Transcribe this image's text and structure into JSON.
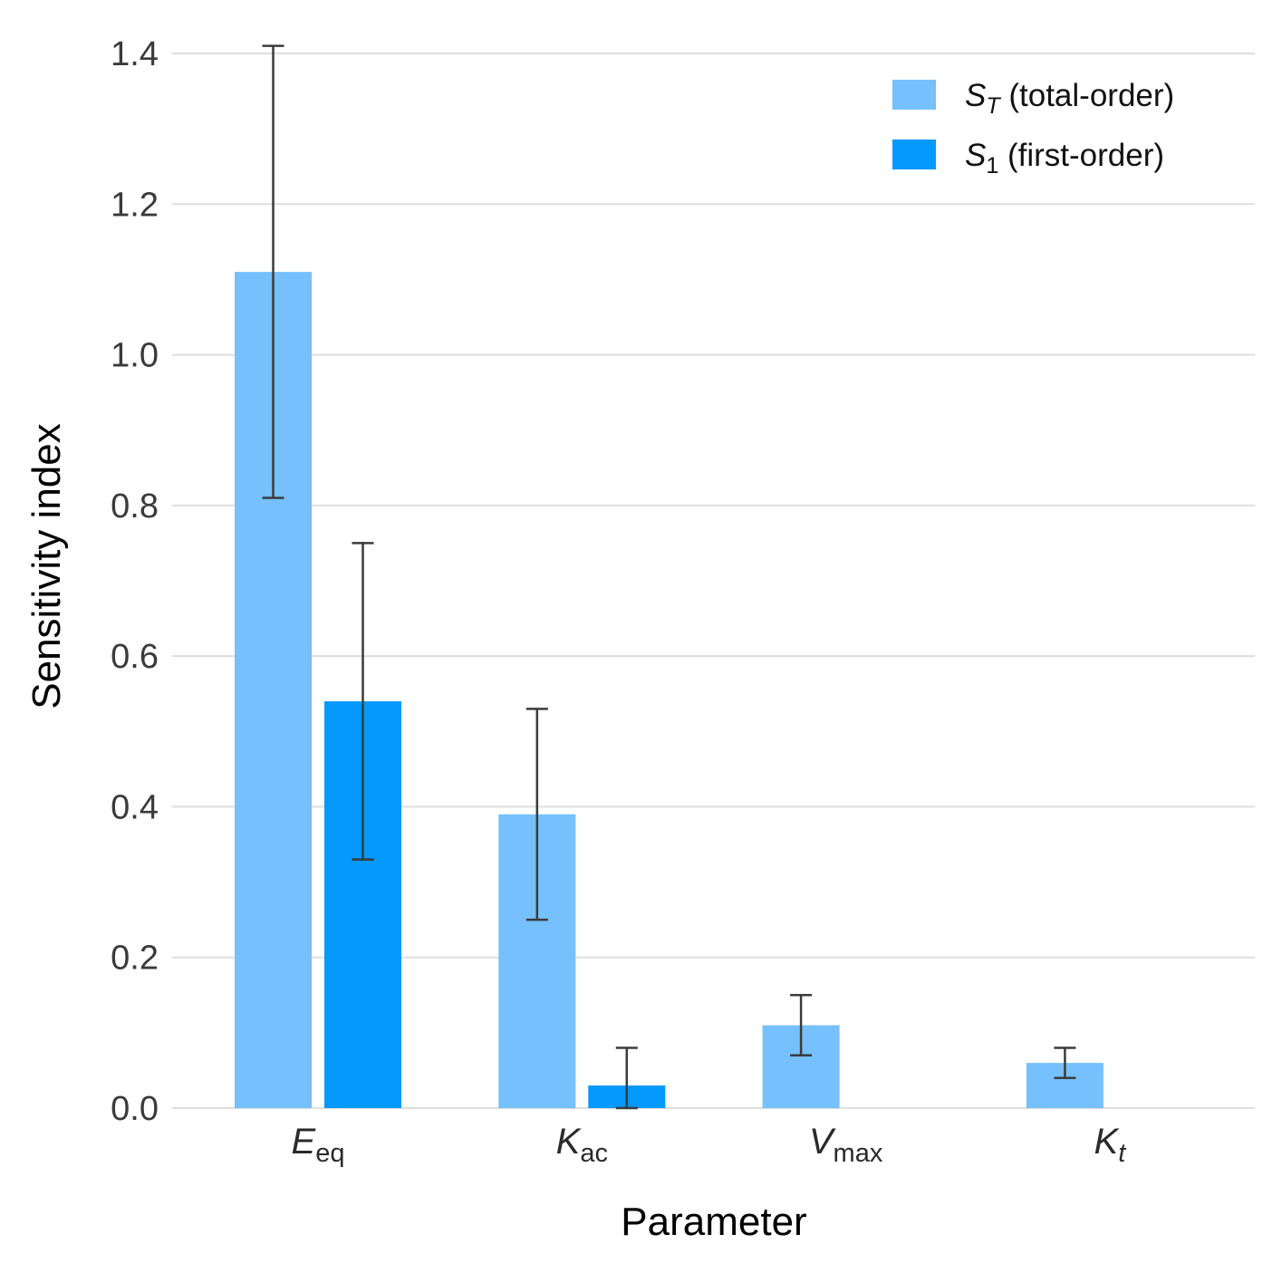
{
  "chart_data": {
    "type": "bar",
    "xlabel": "Parameter",
    "ylabel": "Sensitivity index",
    "ylim": [
      0,
      1.4
    ],
    "yticks": [
      0.0,
      0.2,
      0.4,
      0.6,
      0.8,
      1.0,
      1.2,
      1.4
    ],
    "grid": true,
    "legend_position": "top-right",
    "categories": [
      {
        "base": "E",
        "sub": "eq",
        "sub_italic": false
      },
      {
        "base": "K",
        "sub": "ac",
        "sub_italic": false
      },
      {
        "base": "V",
        "sub": "max",
        "sub_italic": false
      },
      {
        "base": "K",
        "sub": "t",
        "sub_italic": true
      }
    ],
    "series": [
      {
        "symbol": "S",
        "sub": "T",
        "sub_italic": true,
        "desc": "(total-order)",
        "color": "#75c0fd",
        "values": [
          1.11,
          0.39,
          0.11,
          0.06
        ],
        "err_low": [
          0.81,
          0.25,
          0.07,
          0.04
        ],
        "err_high": [
          1.41,
          0.53,
          0.15,
          0.08
        ]
      },
      {
        "symbol": "S",
        "sub": "1",
        "sub_italic": false,
        "desc": "(first-order)",
        "color": "#0499fc",
        "values": [
          0.54,
          0.03,
          null,
          null
        ],
        "err_low": [
          0.33,
          0.0,
          null,
          null
        ],
        "err_high": [
          0.75,
          0.08,
          null,
          null
        ]
      }
    ]
  }
}
